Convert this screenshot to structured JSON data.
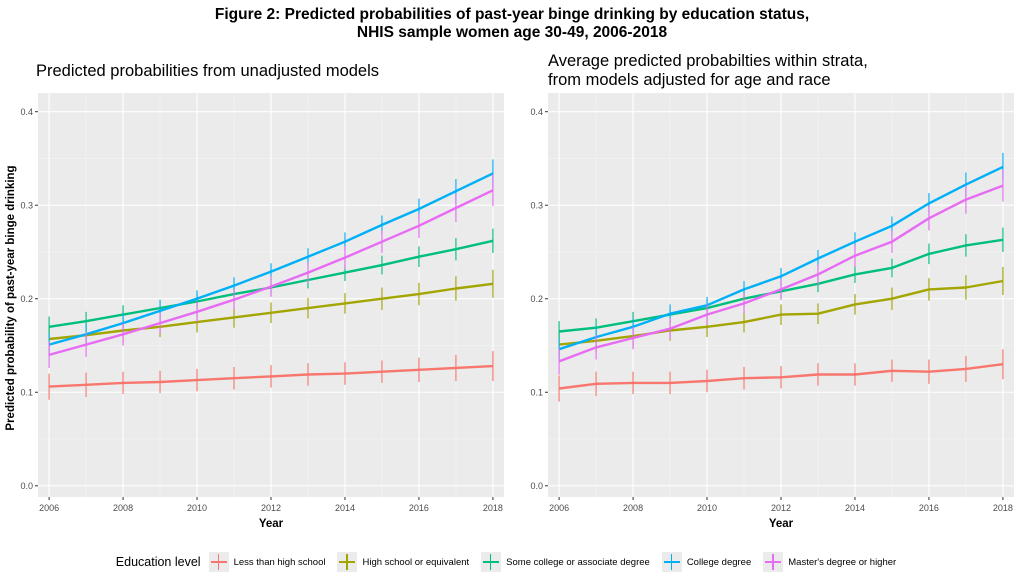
{
  "figure": {
    "title_line1": "Figure 2: Predicted probabilities of past-year binge drinking by education status,",
    "title_line2": "NHIS sample women age 30-49, 2006-2018",
    "ylabel": "Predicted probability of past-year binge drinking",
    "legend_title": "Education level"
  },
  "chart_data": [
    {
      "type": "line",
      "title": "Predicted probabilities from unadjusted models",
      "subtitle": "",
      "xlabel": "Year",
      "ylabel": "Predicted probability of past-year binge drinking",
      "xlim": [
        2005.7,
        2018.3
      ],
      "ylim": [
        -0.012,
        0.42
      ],
      "xticks": [
        "2006",
        "2008",
        "2010",
        "2012",
        "2014",
        "2016",
        "2018"
      ],
      "yticks": [
        "0.0",
        "0.1",
        "0.2",
        "0.3",
        "0.4"
      ],
      "grid": true,
      "legend_position": "bottom",
      "x": [
        2006,
        2007,
        2008,
        2009,
        2010,
        2011,
        2012,
        2013,
        2014,
        2015,
        2016,
        2017,
        2018
      ],
      "series": [
        {
          "name": "Less than high school",
          "color": "#F8766D",
          "values": [
            0.106,
            0.108,
            0.11,
            0.111,
            0.113,
            0.115,
            0.117,
            0.119,
            0.12,
            0.122,
            0.124,
            0.126,
            0.128
          ],
          "ci": [
            0.014,
            0.013,
            0.012,
            0.012,
            0.012,
            0.012,
            0.012,
            0.012,
            0.012,
            0.012,
            0.013,
            0.014,
            0.016
          ]
        },
        {
          "name": "High school or equivalent",
          "color": "#A3A500",
          "values": [
            0.157,
            0.161,
            0.166,
            0.17,
            0.175,
            0.18,
            0.185,
            0.19,
            0.195,
            0.2,
            0.205,
            0.211,
            0.216
          ],
          "ci": [
            0.013,
            0.012,
            0.012,
            0.011,
            0.011,
            0.011,
            0.011,
            0.011,
            0.011,
            0.012,
            0.012,
            0.013,
            0.015
          ]
        },
        {
          "name": "Some college or associate degree",
          "color": "#00BF7D",
          "values": [
            0.17,
            0.176,
            0.183,
            0.19,
            0.197,
            0.205,
            0.212,
            0.22,
            0.228,
            0.236,
            0.245,
            0.253,
            0.262
          ],
          "ci": [
            0.011,
            0.01,
            0.01,
            0.009,
            0.009,
            0.009,
            0.009,
            0.009,
            0.009,
            0.01,
            0.011,
            0.012,
            0.013
          ]
        },
        {
          "name": "College degree",
          "color": "#00B0F6",
          "values": [
            0.151,
            0.162,
            0.174,
            0.187,
            0.2,
            0.214,
            0.229,
            0.245,
            0.261,
            0.279,
            0.296,
            0.315,
            0.334
          ],
          "ci": [
            0.012,
            0.011,
            0.01,
            0.01,
            0.009,
            0.009,
            0.009,
            0.009,
            0.01,
            0.01,
            0.011,
            0.013,
            0.015
          ]
        },
        {
          "name": "Master's degree or higher",
          "color": "#E76BF3",
          "values": [
            0.14,
            0.151,
            0.162,
            0.174,
            0.186,
            0.199,
            0.213,
            0.228,
            0.244,
            0.261,
            0.278,
            0.297,
            0.316
          ],
          "ci": [
            0.014,
            0.013,
            0.012,
            0.011,
            0.011,
            0.011,
            0.011,
            0.011,
            0.012,
            0.012,
            0.013,
            0.015,
            0.017
          ]
        }
      ]
    },
    {
      "type": "line",
      "title": "Average predicted probabilties within strata,",
      "subtitle": "from models adjusted for age and race",
      "xlabel": "Year",
      "ylabel": "",
      "xlim": [
        2005.7,
        2018.3
      ],
      "ylim": [
        -0.012,
        0.42
      ],
      "xticks": [
        "2006",
        "2008",
        "2010",
        "2012",
        "2014",
        "2016",
        "2018"
      ],
      "yticks": [
        "0.0",
        "0.1",
        "0.2",
        "0.3",
        "0.4"
      ],
      "grid": true,
      "legend_position": "bottom",
      "x": [
        2006,
        2007,
        2008,
        2009,
        2010,
        2011,
        2012,
        2013,
        2014,
        2015,
        2016,
        2017,
        2018
      ],
      "series": [
        {
          "name": "Less than high school",
          "color": "#F8766D",
          "values": [
            0.104,
            0.109,
            0.11,
            0.11,
            0.112,
            0.115,
            0.116,
            0.119,
            0.119,
            0.123,
            0.122,
            0.125,
            0.13
          ],
          "ci": [
            0.014,
            0.013,
            0.012,
            0.012,
            0.012,
            0.012,
            0.012,
            0.012,
            0.012,
            0.012,
            0.013,
            0.014,
            0.016
          ]
        },
        {
          "name": "High school or equivalent",
          "color": "#A3A500",
          "values": [
            0.151,
            0.155,
            0.16,
            0.166,
            0.17,
            0.175,
            0.183,
            0.184,
            0.194,
            0.2,
            0.21,
            0.212,
            0.219
          ],
          "ci": [
            0.013,
            0.012,
            0.012,
            0.011,
            0.011,
            0.011,
            0.011,
            0.011,
            0.011,
            0.012,
            0.012,
            0.013,
            0.015
          ]
        },
        {
          "name": "Some college or associate degree",
          "color": "#00BF7D",
          "values": [
            0.165,
            0.169,
            0.176,
            0.183,
            0.19,
            0.2,
            0.208,
            0.216,
            0.226,
            0.233,
            0.248,
            0.257,
            0.263
          ],
          "ci": [
            0.011,
            0.01,
            0.01,
            0.009,
            0.009,
            0.009,
            0.009,
            0.009,
            0.009,
            0.01,
            0.011,
            0.012,
            0.013
          ]
        },
        {
          "name": "College degree",
          "color": "#00B0F6",
          "values": [
            0.146,
            0.159,
            0.17,
            0.184,
            0.193,
            0.21,
            0.224,
            0.243,
            0.261,
            0.278,
            0.302,
            0.322,
            0.341
          ],
          "ci": [
            0.012,
            0.011,
            0.01,
            0.01,
            0.009,
            0.009,
            0.009,
            0.009,
            0.01,
            0.01,
            0.011,
            0.013,
            0.015
          ]
        },
        {
          "name": "Master's degree or higher",
          "color": "#E76BF3",
          "values": [
            0.133,
            0.148,
            0.158,
            0.168,
            0.183,
            0.195,
            0.21,
            0.226,
            0.246,
            0.261,
            0.286,
            0.306,
            0.321
          ],
          "ci": [
            0.014,
            0.013,
            0.012,
            0.011,
            0.011,
            0.011,
            0.011,
            0.011,
            0.012,
            0.012,
            0.013,
            0.015,
            0.017
          ]
        }
      ]
    }
  ]
}
